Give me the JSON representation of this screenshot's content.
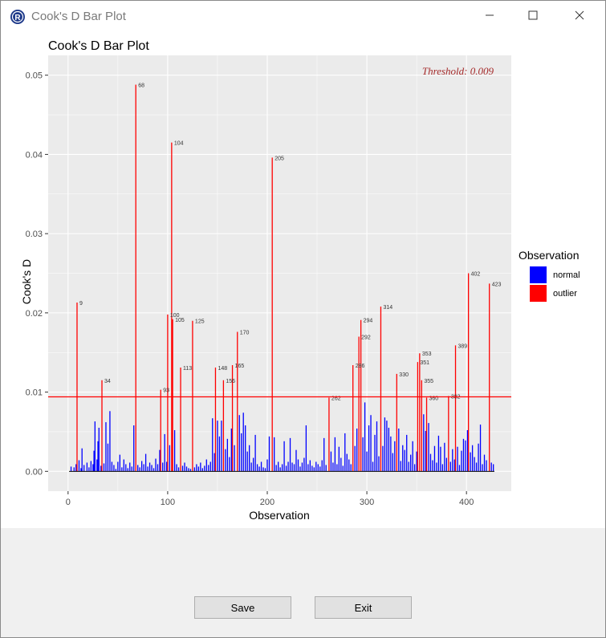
{
  "window": {
    "title": "Cook's D Bar Plot"
  },
  "buttons": {
    "save": "Save",
    "exit": "Exit"
  },
  "icons": {
    "app": "r-logo-icon",
    "minimize": "minimize-icon",
    "maximize": "maximize-icon",
    "close": "close-icon"
  },
  "colors": {
    "normal": "#0000ff",
    "outlier": "#ff0000",
    "threshold": "#ff0000",
    "panel": "#ebebeb",
    "threshold_text": "#a52a2a"
  },
  "chart_data": {
    "type": "bar",
    "title": "Cook's D Bar Plot",
    "xlabel": "Observation",
    "ylabel": "Cook's D",
    "xlim": [
      -20,
      445
    ],
    "ylim": [
      -0.0025,
      0.0525
    ],
    "x_ticks": [
      0,
      100,
      200,
      300,
      400
    ],
    "y_ticks": [
      0.0,
      0.01,
      0.02,
      0.03,
      0.04,
      0.05
    ],
    "y_tick_labels": [
      "0.00",
      "0.01",
      "0.02",
      "0.03",
      "0.04",
      "0.05"
    ],
    "threshold": 0.0094,
    "threshold_label": "Threshold: 0.009",
    "legend": {
      "title": "Observation",
      "position": "right",
      "entries": [
        "normal",
        "outlier"
      ]
    },
    "grid": true,
    "outliers": [
      {
        "x": 9,
        "y": 0.0213,
        "label": "9"
      },
      {
        "x": 34,
        "y": 0.0115,
        "label": "34"
      },
      {
        "x": 68,
        "y": 0.0488,
        "label": "68"
      },
      {
        "x": 93,
        "y": 0.0103,
        "label": "93"
      },
      {
        "x": 100,
        "y": 0.0198,
        "label": "100"
      },
      {
        "x": 104,
        "y": 0.0415,
        "label": "104"
      },
      {
        "x": 105,
        "y": 0.0192,
        "label": "105"
      },
      {
        "x": 113,
        "y": 0.0131,
        "label": "113"
      },
      {
        "x": 125,
        "y": 0.019,
        "label": "125"
      },
      {
        "x": 148,
        "y": 0.0131,
        "label": "148"
      },
      {
        "x": 156,
        "y": 0.0115,
        "label": "156"
      },
      {
        "x": 165,
        "y": 0.0134,
        "label": "165"
      },
      {
        "x": 170,
        "y": 0.0176,
        "label": "170"
      },
      {
        "x": 205,
        "y": 0.0396,
        "label": "205"
      },
      {
        "x": 262,
        "y": 0.0093,
        "label": "262"
      },
      {
        "x": 286,
        "y": 0.0134,
        "label": "286"
      },
      {
        "x": 292,
        "y": 0.017,
        "label": "292"
      },
      {
        "x": 294,
        "y": 0.0191,
        "label": "294"
      },
      {
        "x": 314,
        "y": 0.0208,
        "label": "314"
      },
      {
        "x": 330,
        "y": 0.0123,
        "label": "330"
      },
      {
        "x": 351,
        "y": 0.0138,
        "label": "351"
      },
      {
        "x": 353,
        "y": 0.0149,
        "label": "353"
      },
      {
        "x": 355,
        "y": 0.0115,
        "label": "355"
      },
      {
        "x": 360,
        "y": 0.0093,
        "label": "360"
      },
      {
        "x": 382,
        "y": 0.0095,
        "label": "382"
      },
      {
        "x": 389,
        "y": 0.0159,
        "label": "389"
      },
      {
        "x": 402,
        "y": 0.025,
        "label": "402"
      },
      {
        "x": 423,
        "y": 0.0237,
        "label": "423"
      }
    ],
    "normal_bars": [
      [
        3,
        0.0006
      ],
      [
        6,
        0.0005
      ],
      [
        8,
        0.0009
      ],
      [
        11,
        0.0014
      ],
      [
        13,
        0.0004
      ],
      [
        14,
        0.0029
      ],
      [
        16,
        0.0008
      ],
      [
        19,
        0.0011
      ],
      [
        21,
        0.0005
      ],
      [
        23,
        0.0013
      ],
      [
        25,
        0.0009
      ],
      [
        26,
        0.0026
      ],
      [
        27,
        0.0063
      ],
      [
        29,
        0.0015
      ],
      [
        30,
        0.0038
      ],
      [
        31,
        0.0055
      ],
      [
        33,
        0.0007
      ],
      [
        36,
        0.001
      ],
      [
        38,
        0.0062
      ],
      [
        40,
        0.0035
      ],
      [
        42,
        0.0076
      ],
      [
        44,
        0.0012
      ],
      [
        46,
        0.0008
      ],
      [
        48,
        0.0003
      ],
      [
        50,
        0.0012
      ],
      [
        52,
        0.0021
      ],
      [
        54,
        0.0005
      ],
      [
        56,
        0.0015
      ],
      [
        58,
        0.0009
      ],
      [
        60,
        0.0004
      ],
      [
        62,
        0.0011
      ],
      [
        64,
        0.0006
      ],
      [
        66,
        0.0058
      ],
      [
        70,
        0.0008
      ],
      [
        72,
        0.0005
      ],
      [
        74,
        0.0013
      ],
      [
        76,
        0.0009
      ],
      [
        78,
        0.0022
      ],
      [
        80,
        0.0006
      ],
      [
        82,
        0.0011
      ],
      [
        84,
        0.0008
      ],
      [
        86,
        0.0004
      ],
      [
        88,
        0.0016
      ],
      [
        90,
        0.0009
      ],
      [
        92,
        0.0027
      ],
      [
        95,
        0.0011
      ],
      [
        97,
        0.0047
      ],
      [
        99,
        0.0012
      ],
      [
        102,
        0.0033
      ],
      [
        107,
        0.0052
      ],
      [
        109,
        0.0009
      ],
      [
        111,
        0.0005
      ],
      [
        115,
        0.0007
      ],
      [
        117,
        0.0011
      ],
      [
        119,
        0.0006
      ],
      [
        121,
        0.0004
      ],
      [
        123,
        0.0003
      ],
      [
        127,
        0.0005
      ],
      [
        129,
        0.0009
      ],
      [
        131,
        0.0006
      ],
      [
        133,
        0.0011
      ],
      [
        135,
        0.0004
      ],
      [
        137,
        0.0007
      ],
      [
        139,
        0.0015
      ],
      [
        141,
        0.0008
      ],
      [
        143,
        0.0012
      ],
      [
        145,
        0.0067
      ],
      [
        147,
        0.0023
      ],
      [
        150,
        0.0064
      ],
      [
        152,
        0.0044
      ],
      [
        154,
        0.0064
      ],
      [
        158,
        0.0028
      ],
      [
        160,
        0.0041
      ],
      [
        162,
        0.0018
      ],
      [
        164,
        0.0054
      ],
      [
        167,
        0.0033
      ],
      [
        172,
        0.0071
      ],
      [
        174,
        0.0048
      ],
      [
        176,
        0.0074
      ],
      [
        178,
        0.0058
      ],
      [
        180,
        0.0025
      ],
      [
        182,
        0.0033
      ],
      [
        184,
        0.0011
      ],
      [
        186,
        0.0017
      ],
      [
        188,
        0.0046
      ],
      [
        190,
        0.0009
      ],
      [
        192,
        0.0006
      ],
      [
        194,
        0.0012
      ],
      [
        196,
        0.0005
      ],
      [
        198,
        0.0004
      ],
      [
        200,
        0.0015
      ],
      [
        202,
        0.0044
      ],
      [
        207,
        0.0043
      ],
      [
        209,
        0.0008
      ],
      [
        211,
        0.0012
      ],
      [
        213,
        0.0005
      ],
      [
        215,
        0.0009
      ],
      [
        217,
        0.0038
      ],
      [
        219,
        0.0007
      ],
      [
        221,
        0.0012
      ],
      [
        223,
        0.0042
      ],
      [
        225,
        0.0011
      ],
      [
        227,
        0.0009
      ],
      [
        229,
        0.0027
      ],
      [
        231,
        0.0015
      ],
      [
        233,
        0.0006
      ],
      [
        235,
        0.0011
      ],
      [
        237,
        0.0017
      ],
      [
        239,
        0.0058
      ],
      [
        241,
        0.0009
      ],
      [
        243,
        0.0014
      ],
      [
        245,
        0.0007
      ],
      [
        247,
        0.0005
      ],
      [
        249,
        0.0012
      ],
      [
        251,
        0.0009
      ],
      [
        253,
        0.0006
      ],
      [
        255,
        0.0014
      ],
      [
        257,
        0.0042
      ],
      [
        259,
        0.0008
      ],
      [
        264,
        0.0025
      ],
      [
        266,
        0.0011
      ],
      [
        268,
        0.0043
      ],
      [
        270,
        0.0009
      ],
      [
        272,
        0.0031
      ],
      [
        274,
        0.0017
      ],
      [
        276,
        0.0007
      ],
      [
        278,
        0.0048
      ],
      [
        280,
        0.0022
      ],
      [
        282,
        0.0015
      ],
      [
        284,
        0.0009
      ],
      [
        288,
        0.0032
      ],
      [
        290,
        0.0054
      ],
      [
        296,
        0.0043
      ],
      [
        298,
        0.0087
      ],
      [
        300,
        0.0025
      ],
      [
        302,
        0.0058
      ],
      [
        304,
        0.0071
      ],
      [
        306,
        0.0012
      ],
      [
        308,
        0.0046
      ],
      [
        310,
        0.0063
      ],
      [
        312,
        0.0019
      ],
      [
        316,
        0.0032
      ],
      [
        318,
        0.0068
      ],
      [
        320,
        0.0064
      ],
      [
        322,
        0.0055
      ],
      [
        324,
        0.0044
      ],
      [
        326,
        0.0023
      ],
      [
        328,
        0.0038
      ],
      [
        332,
        0.0054
      ],
      [
        334,
        0.0013
      ],
      [
        336,
        0.0033
      ],
      [
        338,
        0.0027
      ],
      [
        340,
        0.0046
      ],
      [
        342,
        0.0012
      ],
      [
        344,
        0.0021
      ],
      [
        346,
        0.0038
      ],
      [
        348,
        0.0009
      ],
      [
        350,
        0.0025
      ],
      [
        357,
        0.0072
      ],
      [
        359,
        0.0051
      ],
      [
        362,
        0.0061
      ],
      [
        364,
        0.0022
      ],
      [
        366,
        0.0014
      ],
      [
        368,
        0.0032
      ],
      [
        370,
        0.0011
      ],
      [
        372,
        0.0045
      ],
      [
        374,
        0.0031
      ],
      [
        376,
        0.0009
      ],
      [
        378,
        0.0036
      ],
      [
        380,
        0.0017
      ],
      [
        384,
        0.0012
      ],
      [
        386,
        0.0028
      ],
      [
        388,
        0.0015
      ],
      [
        391,
        0.0031
      ],
      [
        393,
        0.0008
      ],
      [
        395,
        0.0026
      ],
      [
        397,
        0.0041
      ],
      [
        399,
        0.0039
      ],
      [
        401,
        0.0052
      ],
      [
        404,
        0.0024
      ],
      [
        406,
        0.0033
      ],
      [
        408,
        0.0018
      ],
      [
        410,
        0.0011
      ],
      [
        412,
        0.0035
      ],
      [
        414,
        0.0059
      ],
      [
        416,
        0.0009
      ],
      [
        418,
        0.0021
      ],
      [
        420,
        0.0014
      ],
      [
        425,
        0.0011
      ],
      [
        427,
        0.0009
      ]
    ]
  }
}
